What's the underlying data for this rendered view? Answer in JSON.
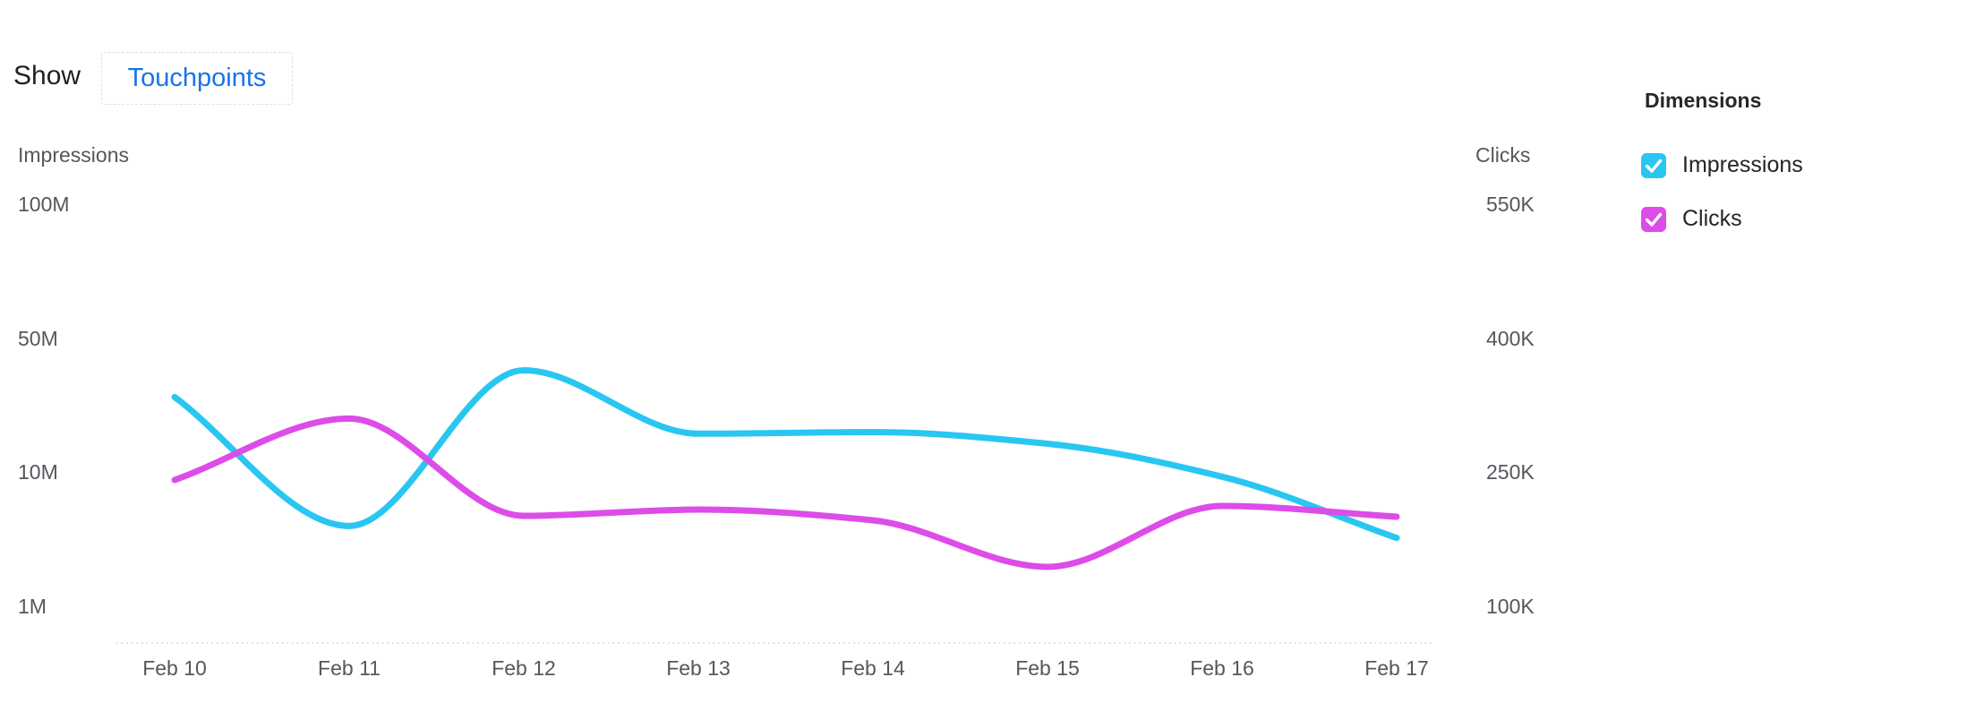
{
  "header": {
    "show_label": "Show",
    "touchpoints_label": "Touchpoints",
    "touchpoints_color": "#1A73E8"
  },
  "legend": {
    "title": "Dimensions",
    "items": [
      {
        "label": "Impressions",
        "color": "#29C6F2",
        "checked": true
      },
      {
        "label": "Clicks",
        "color": "#DD4CE8",
        "checked": true
      }
    ]
  },
  "chart_data": {
    "type": "line",
    "x_labels": [
      "Feb 10",
      "Feb 11",
      "Feb 12",
      "Feb 13",
      "Feb 14",
      "Feb 15",
      "Feb 16",
      "Feb 17"
    ],
    "left_axis": {
      "title": "Impressions",
      "tick_labels": [
        "100M",
        "50M",
        "10M",
        "1M"
      ],
      "tick_values_millions": [
        100,
        50,
        10,
        1
      ]
    },
    "right_axis": {
      "title": "Clicks",
      "tick_labels": [
        "550K",
        "400K",
        "250K",
        "100K"
      ],
      "tick_values_thousands": [
        550,
        400,
        250,
        100
      ]
    },
    "series": [
      {
        "name": "Impressions",
        "axis": "left",
        "unit": "millions",
        "color": "#29C6F2",
        "values": [
          33,
          6.5,
          41,
          22,
          22.5,
          19,
          9.8,
          5.7
        ]
      },
      {
        "name": "Clicks",
        "axis": "right",
        "unit": "thousands",
        "color": "#DD4CE8",
        "values": [
          243,
          312,
          203,
          210,
          198,
          146,
          214,
          202
        ]
      }
    ],
    "grid": false,
    "legend_position": "right",
    "curve": "smooth-monotone"
  }
}
